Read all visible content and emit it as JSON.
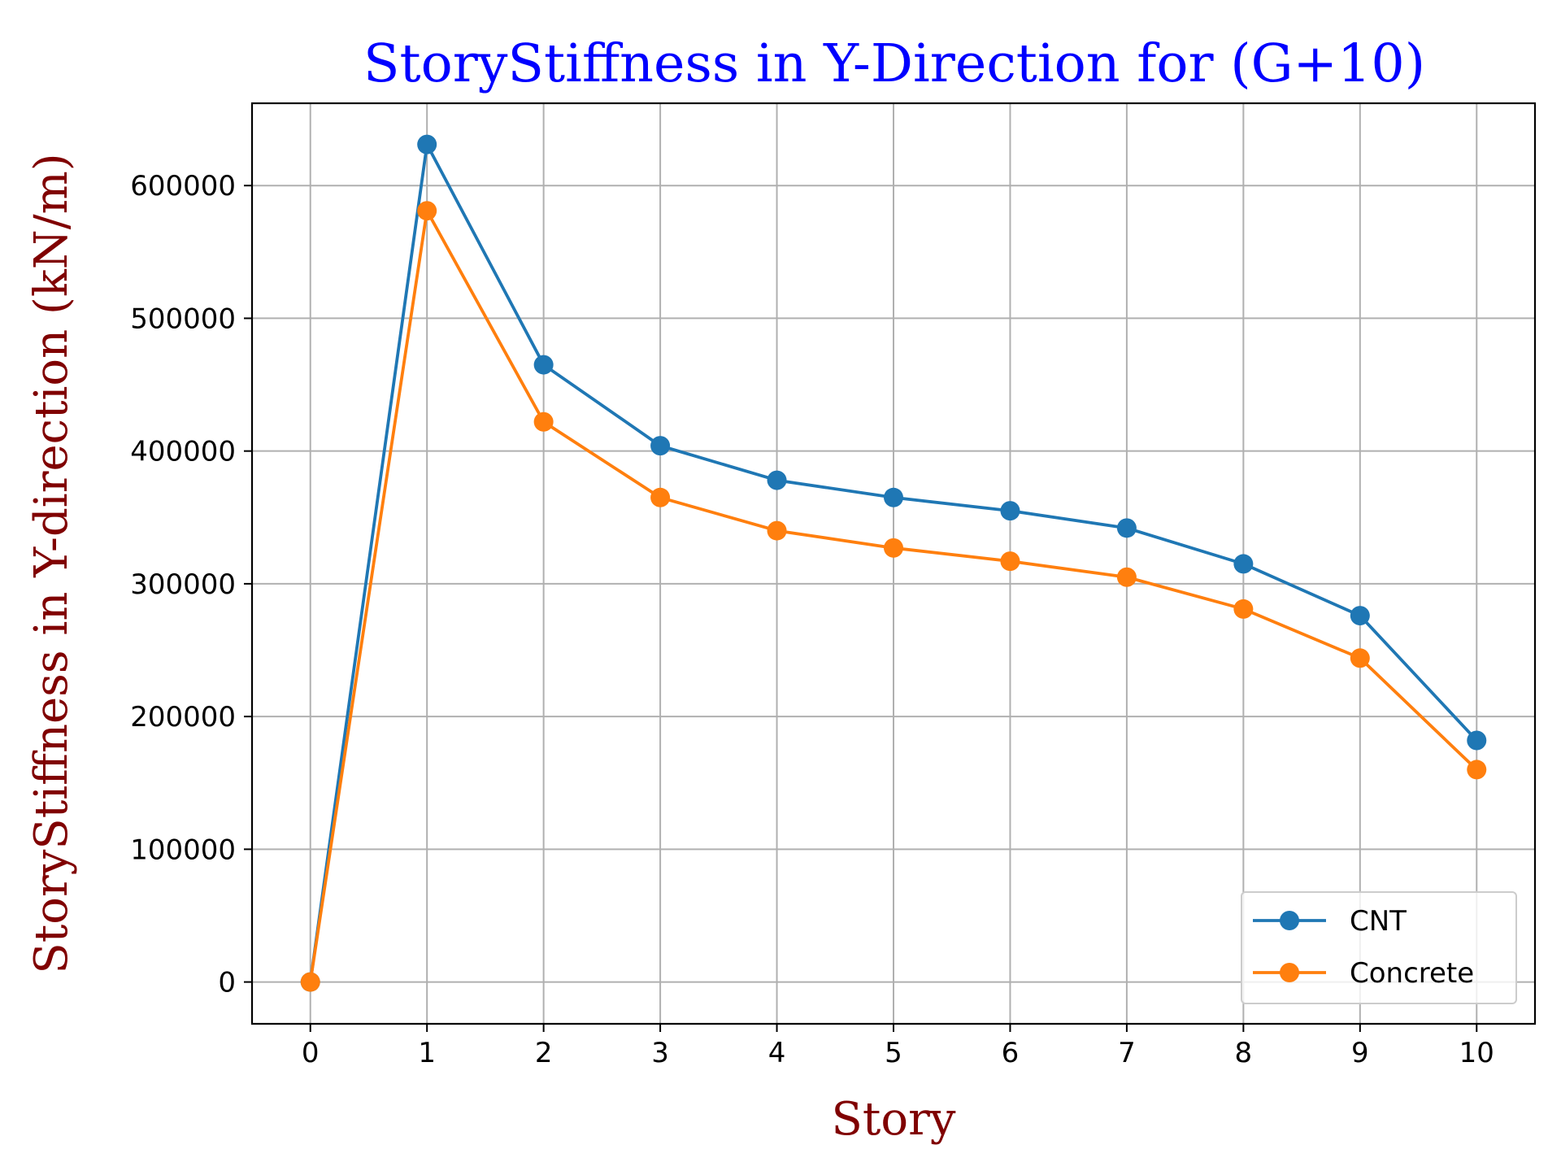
{
  "chart_data": {
    "type": "line",
    "title": "StoryStiffness in Y-Direction for (G+10)",
    "xlabel": "Story",
    "ylabel": "StoryStiffness in Y-direction (kN/m)",
    "x": [
      0,
      1,
      2,
      3,
      4,
      5,
      6,
      7,
      8,
      9,
      10
    ],
    "xticks": [
      "0",
      "1",
      "2",
      "3",
      "4",
      "5",
      "6",
      "7",
      "8",
      "9",
      "10"
    ],
    "yticks": [
      "0",
      "100000",
      "200000",
      "300000",
      "400000",
      "500000",
      "600000"
    ],
    "xlim": [
      -0.5,
      10.5
    ],
    "ylim": [
      -31500,
      662000
    ],
    "grid": true,
    "legend_position": "lower right",
    "series": [
      {
        "name": "CNT",
        "color": "#1f77b4",
        "marker": "circle",
        "values": [
          0,
          631000,
          465000,
          404000,
          378000,
          365000,
          355000,
          342000,
          315000,
          276000,
          182000
        ]
      },
      {
        "name": "Concrete",
        "color": "#ff7f0e",
        "marker": "circle",
        "values": [
          0,
          581000,
          422000,
          365000,
          340000,
          327000,
          317000,
          305000,
          281000,
          244000,
          160000
        ]
      }
    ]
  }
}
